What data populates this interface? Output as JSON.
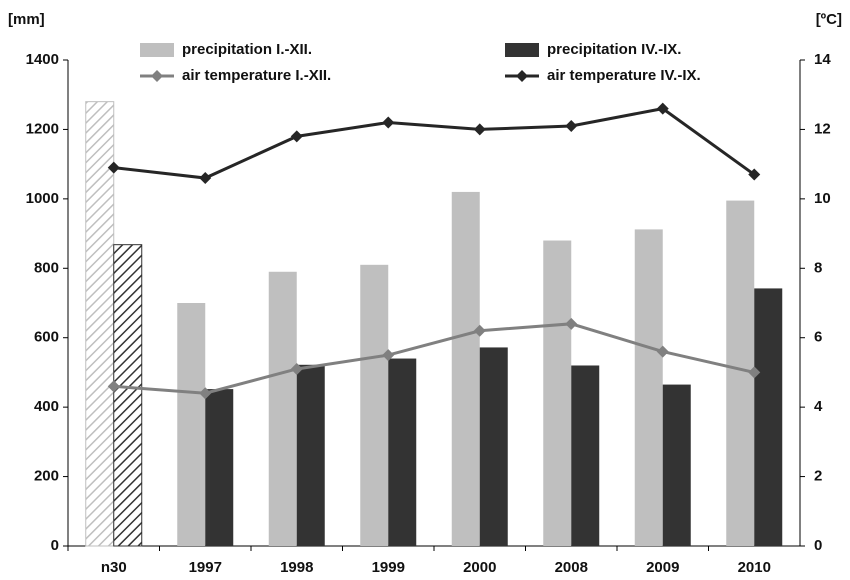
{
  "chart_data": {
    "type": "combo",
    "y_label": "[mm]",
    "y2_label": "[ºC]",
    "categories": [
      "n30",
      "1997",
      "1998",
      "1999",
      "2000",
      "2008",
      "2009",
      "2010"
    ],
    "series": [
      {
        "name": "precipitation I.-XII.",
        "type": "bar",
        "color": "#bfbfbf",
        "values": [
          1280,
          700,
          790,
          810,
          1020,
          880,
          912,
          995
        ]
      },
      {
        "name": "precipitation IV.-IX.",
        "type": "bar",
        "color": "#333333",
        "values": [
          868,
          452,
          522,
          540,
          572,
          520,
          465,
          742
        ]
      },
      {
        "name": "air temperature I.-XII.",
        "type": "line",
        "axis": "y2",
        "color": "#808080",
        "values": [
          4.6,
          4.4,
          5.1,
          5.5,
          6.2,
          6.4,
          5.6,
          5.0
        ]
      },
      {
        "name": "air temperature IV.-IX.",
        "type": "line",
        "axis": "y2",
        "color": "#262626",
        "values": [
          10.9,
          10.6,
          11.8,
          12.2,
          12.0,
          12.1,
          12.6,
          10.7
        ]
      }
    ],
    "hatched": [
      0
    ],
    "ylim": [
      0,
      1400
    ],
    "yticks": [
      0,
      200,
      400,
      600,
      800,
      1000,
      1200,
      1400
    ],
    "y2lim": [
      0,
      14
    ],
    "y2ticks": [
      0,
      2,
      4,
      6,
      8,
      10,
      12,
      14
    ],
    "grid": false
  }
}
